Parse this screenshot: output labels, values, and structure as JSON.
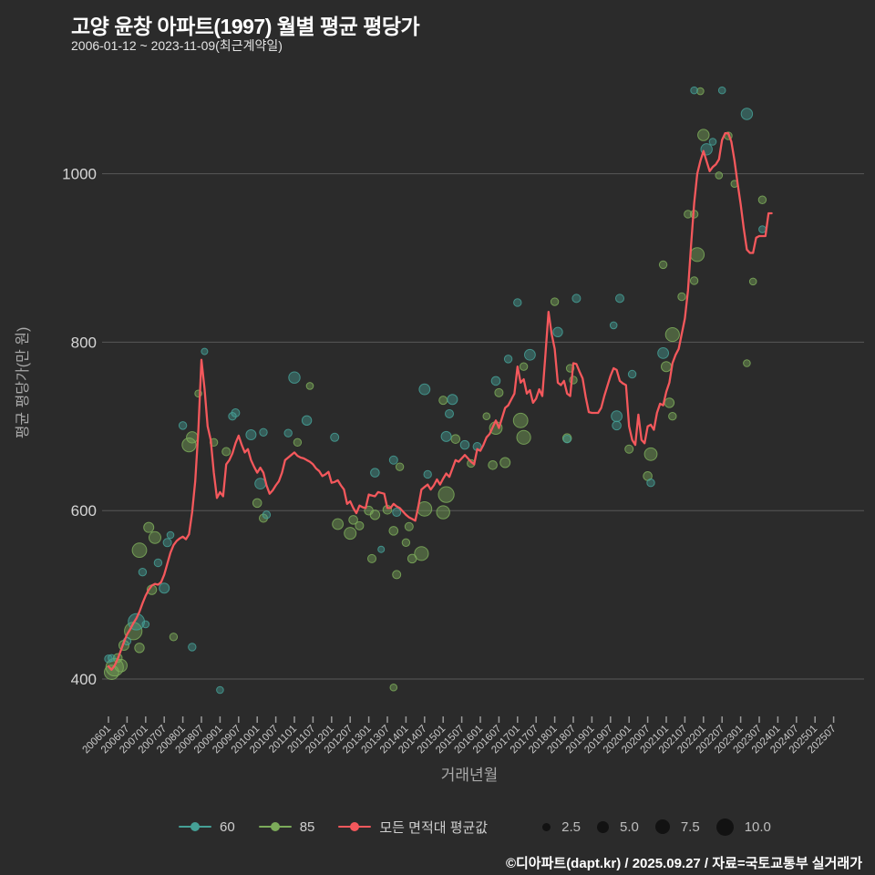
{
  "header": {
    "title": "고양 윤창 아파트(1997) 월별 평균 평당가",
    "subtitle": "2006-01-12 ~ 2023-11-09(최근계약일)"
  },
  "footer": {
    "credit": "©디아파트(dapt.kr) / 2025.09.27 / 자료=국토교통부 실거래가"
  },
  "colors": {
    "background": "#2b2b2b",
    "series_60": "#45a096",
    "series_85": "#7cab5a",
    "average_line": "#f4585c",
    "gridline": "#7d7d7d",
    "tick_text": "#c9c9c9",
    "axis_title_text": "#a9a9a9",
    "size_circle": "#121212"
  },
  "chart_data": {
    "type": "scatter",
    "title": "고양 윤창 아파트(1997) 월별 평균 평당가",
    "xlabel": "거래년월",
    "ylabel": "평균 평당가(만 원)",
    "grid": "horizontal-only",
    "legend_position": "bottom",
    "ylim": [
      380,
      1115
    ],
    "y_ticks": [
      400,
      600,
      800,
      1000
    ],
    "x_tick_labels": [
      "200601",
      "200607",
      "200701",
      "200707",
      "200801",
      "200807",
      "200901",
      "200907",
      "201001",
      "201007",
      "201101",
      "201107",
      "201201",
      "201207",
      "201301",
      "201307",
      "201401",
      "201407",
      "201501",
      "201507",
      "201601",
      "201607",
      "201701",
      "201707",
      "201801",
      "201807",
      "201901",
      "201907",
      "202001",
      "202007",
      "202101",
      "202107",
      "202201",
      "202207",
      "202301",
      "202307",
      "202401",
      "202407",
      "202501",
      "202507"
    ],
    "size_legend": [
      "2.5",
      "5.0",
      "7.5",
      "10.0"
    ],
    "line_series": {
      "name": "모든 면적대 평균값",
      "start_month": "2006-01",
      "end_month": "2023-11",
      "monthly_values": [
        415,
        411,
        416,
        424,
        434,
        444,
        453,
        459,
        466,
        472,
        480,
        490,
        499,
        506,
        511,
        513,
        512,
        515,
        524,
        537,
        550,
        559,
        564,
        567,
        569,
        566,
        572,
        598,
        635,
        695,
        779,
        745,
        700,
        684,
        645,
        615,
        622,
        617,
        655,
        660,
        668,
        680,
        689,
        678,
        669,
        673,
        660,
        652,
        645,
        651,
        645,
        630,
        620,
        624,
        630,
        635,
        645,
        660,
        663,
        666,
        669,
        665,
        663,
        662,
        660,
        658,
        655,
        650,
        647,
        641,
        643,
        646,
        633,
        634,
        636,
        630,
        625,
        608,
        611,
        603,
        597,
        606,
        604,
        603,
        619,
        618,
        617,
        622,
        621,
        620,
        603,
        603,
        608,
        605,
        603,
        599,
        595,
        592,
        590,
        588,
        605,
        625,
        628,
        631,
        625,
        630,
        637,
        631,
        638,
        644,
        640,
        650,
        660,
        658,
        662,
        666,
        662,
        658,
        655,
        673,
        671,
        678,
        687,
        691,
        699,
        707,
        698,
        710,
        722,
        725,
        732,
        739,
        771,
        752,
        756,
        739,
        743,
        728,
        733,
        744,
        736,
        785,
        836,
        810,
        792,
        752,
        749,
        754,
        739,
        736,
        775,
        774,
        765,
        757,
        735,
        717,
        716,
        716,
        716,
        722,
        736,
        748,
        760,
        769,
        767,
        754,
        751,
        749,
        700,
        684,
        678,
        714,
        684,
        680,
        700,
        702,
        696,
        716,
        727,
        725,
        741,
        752,
        775,
        785,
        792,
        810,
        828,
        861,
        915,
        965,
        1000,
        1015,
        1027,
        1015,
        1003,
        1008,
        1011,
        1017,
        1040,
        1048,
        1048,
        1038,
        1016,
        989,
        964,
        935,
        910,
        906,
        906,
        924,
        926,
        926,
        926,
        953,
        953
      ]
    },
    "bubble_series": [
      {
        "name": "60",
        "points": [
          [
            "2006-01",
            424,
            2
          ],
          [
            "2006-02",
            425,
            1.5
          ],
          [
            "2006-07",
            445,
            2
          ],
          [
            "2006-10",
            468,
            9
          ],
          [
            "2006-12",
            527,
            2
          ],
          [
            "2007-01",
            465,
            1.5
          ],
          [
            "2007-05",
            538,
            2
          ],
          [
            "2007-07",
            508,
            4
          ],
          [
            "2007-08",
            562,
            2.5
          ],
          [
            "2007-09",
            571,
            1.5
          ],
          [
            "2008-01",
            701,
            2
          ],
          [
            "2008-04",
            438,
            2
          ],
          [
            "2008-08",
            789,
            1
          ],
          [
            "2009-01",
            387,
            1.5
          ],
          [
            "2009-05",
            712,
            2
          ],
          [
            "2009-06",
            716,
            2.5
          ],
          [
            "2009-11",
            690,
            4
          ],
          [
            "2010-02",
            632,
            4.5
          ],
          [
            "2010-03",
            693,
            2
          ],
          [
            "2010-04",
            595,
            2
          ],
          [
            "2010-11",
            692,
            2
          ],
          [
            "2011-01",
            758,
            5
          ],
          [
            "2011-05",
            707,
            3.5
          ],
          [
            "2012-02",
            687,
            2.5
          ],
          [
            "2013-03",
            645,
            3
          ],
          [
            "2013-05",
            554,
            1
          ],
          [
            "2013-09",
            660,
            2.5
          ],
          [
            "2013-10",
            598,
            2.5
          ],
          [
            "2014-07",
            744,
            4.5
          ],
          [
            "2014-08",
            643,
            2
          ],
          [
            "2015-02",
            688,
            4
          ],
          [
            "2015-03",
            715,
            2.5
          ],
          [
            "2015-04",
            732,
            4
          ],
          [
            "2015-08",
            678,
            3
          ],
          [
            "2015-12",
            676,
            2.5
          ],
          [
            "2016-06",
            754,
            3
          ],
          [
            "2016-10",
            780,
            2
          ],
          [
            "2017-01",
            847,
            2
          ],
          [
            "2017-05",
            785,
            4.5
          ],
          [
            "2018-02",
            812,
            3.5
          ],
          [
            "2018-05",
            685,
            2
          ],
          [
            "2018-08",
            852,
            2.5
          ],
          [
            "2019-08",
            820,
            1.5
          ],
          [
            "2019-09",
            712,
            4.5
          ],
          [
            "2019-09",
            701,
            3
          ],
          [
            "2019-10",
            852,
            2.5
          ],
          [
            "2020-02",
            762,
            2
          ],
          [
            "2020-08",
            633,
            2
          ],
          [
            "2020-12",
            787,
            4.5
          ],
          [
            "2021-10",
            1099,
            1.5
          ],
          [
            "2022-02",
            1029,
            5
          ],
          [
            "2022-04",
            1038,
            1.5
          ],
          [
            "2022-07",
            1099,
            1.5
          ],
          [
            "2023-03",
            1071,
            5
          ],
          [
            "2023-08",
            934,
            1.5
          ]
        ]
      },
      {
        "name": "85",
        "points": [
          [
            "2006-02",
            408,
            7.5
          ],
          [
            "2006-03",
            414,
            10
          ],
          [
            "2006-04",
            425,
            3
          ],
          [
            "2006-05",
            416,
            6
          ],
          [
            "2006-06",
            440,
            4
          ],
          [
            "2006-09",
            457,
            10
          ],
          [
            "2006-11",
            437,
            3.5
          ],
          [
            "2006-11",
            553,
            7.5
          ],
          [
            "2007-02",
            580,
            4
          ],
          [
            "2007-03",
            506,
            3.5
          ],
          [
            "2007-04",
            568,
            5.5
          ],
          [
            "2007-10",
            450,
            2
          ],
          [
            "2008-03",
            678,
            7
          ],
          [
            "2008-04",
            687,
            5
          ],
          [
            "2008-06",
            739,
            1.5
          ],
          [
            "2008-11",
            681,
            2
          ],
          [
            "2009-03",
            670,
            2.5
          ],
          [
            "2010-01",
            609,
            3
          ],
          [
            "2010-03",
            591,
            2.5
          ],
          [
            "2011-02",
            681,
            2
          ],
          [
            "2011-06",
            748,
            1.5
          ],
          [
            "2012-03",
            584,
            4.5
          ],
          [
            "2012-07",
            573,
            5.5
          ],
          [
            "2012-08",
            589,
            3
          ],
          [
            "2012-10",
            582,
            2.5
          ],
          [
            "2013-01",
            600,
            3
          ],
          [
            "2013-02",
            543,
            2.5
          ],
          [
            "2013-03",
            595,
            3.5
          ],
          [
            "2013-07",
            601,
            3
          ],
          [
            "2013-09",
            576,
            3
          ],
          [
            "2013-09",
            390,
            1.5
          ],
          [
            "2013-10",
            524,
            2.5
          ],
          [
            "2013-11",
            652,
            2
          ],
          [
            "2014-01",
            562,
            2
          ],
          [
            "2014-02",
            581,
            2.5
          ],
          [
            "2014-03",
            543,
            3
          ],
          [
            "2014-06",
            549,
            7
          ],
          [
            "2014-07",
            602,
            7.5
          ],
          [
            "2015-01",
            598,
            6.5
          ],
          [
            "2015-01",
            731,
            2.5
          ],
          [
            "2015-02",
            619,
            8.5
          ],
          [
            "2015-05",
            685,
            3
          ],
          [
            "2015-10",
            656,
            2
          ],
          [
            "2016-03",
            712,
            1.5
          ],
          [
            "2016-05",
            654,
            3
          ],
          [
            "2016-06",
            698,
            6
          ],
          [
            "2016-07",
            740,
            2.5
          ],
          [
            "2016-09",
            657,
            4
          ],
          [
            "2017-02",
            707,
            7.5
          ],
          [
            "2017-03",
            687,
            7
          ],
          [
            "2017-03",
            771,
            2
          ],
          [
            "2018-01",
            848,
            2
          ],
          [
            "2018-05",
            686,
            3
          ],
          [
            "2018-06",
            769,
            2
          ],
          [
            "2018-07",
            755,
            2
          ],
          [
            "2020-01",
            673,
            2.5
          ],
          [
            "2020-07",
            641,
            3
          ],
          [
            "2020-08",
            667,
            6
          ],
          [
            "2020-12",
            892,
            2
          ],
          [
            "2021-01",
            771,
            4
          ],
          [
            "2021-02",
            728,
            3.5
          ],
          [
            "2021-03",
            809,
            7
          ],
          [
            "2021-03",
            712,
            2
          ],
          [
            "2021-06",
            854,
            2
          ],
          [
            "2021-08",
            952,
            2
          ],
          [
            "2021-10",
            952,
            2
          ],
          [
            "2021-10",
            873,
            2
          ],
          [
            "2021-11",
            904,
            7
          ],
          [
            "2021-12",
            1098,
            1.5
          ],
          [
            "2022-01",
            1046,
            5
          ],
          [
            "2022-06",
            998,
            1.5
          ],
          [
            "2022-09",
            1045,
            2
          ],
          [
            "2022-11",
            988,
            1.5
          ],
          [
            "2023-03",
            775,
            1.5
          ],
          [
            "2023-05",
            872,
            1.5
          ],
          [
            "2023-08",
            969,
            2
          ]
        ]
      }
    ]
  }
}
